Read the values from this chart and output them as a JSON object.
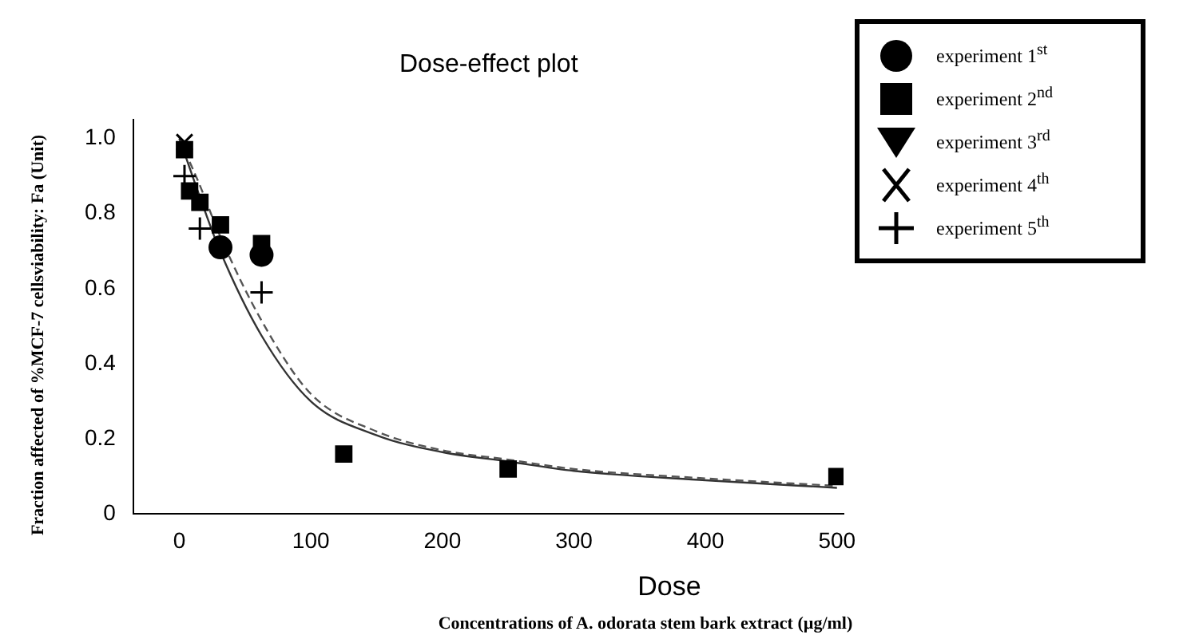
{
  "chart_data": {
    "type": "scatter",
    "title": "Dose-effect plot",
    "xlabel": "Dose",
    "ylabel": "Fraction affected of %MCF-7 cellsviability: Fa (Unit)",
    "annotations": [
      "Concentrations of A. odorata stem bark extract (µg/ml)"
    ],
    "x": [
      3.9,
      7.8,
      15.6,
      31.25,
      62.5,
      125,
      250,
      500
    ],
    "xlim": [
      -35,
      505
    ],
    "xticks": [
      0,
      100,
      200,
      300,
      400,
      500
    ],
    "ylim": [
      0,
      1.05
    ],
    "yticks": [
      0,
      0.2,
      0.4,
      0.6,
      0.8,
      {
        "value": 1,
        "label": "1.0"
      }
    ],
    "grid": false,
    "legend": "top right",
    "series": [
      {
        "name": "experiment 1$^{st}$",
        "color": "#000000",
        "marker": "circle",
        "values": [
          null,
          null,
          null,
          0.71,
          0.69,
          null,
          null,
          null
        ]
      },
      {
        "name": "experiment 2$^{nd}$",
        "color": "#000000",
        "marker": "square",
        "values": [
          0.97,
          0.86,
          0.83,
          0.77,
          0.72,
          0.16,
          0.12,
          0.1
        ]
      },
      {
        "name": "experiment 3$^{rd}$",
        "color": "#000000",
        "marker": "triangle",
        "values": [
          null,
          null,
          null,
          null,
          null,
          null,
          null,
          null
        ]
      },
      {
        "name": "experiment 4$^{th}$",
        "color": "#000000",
        "marker": "cross",
        "values": [
          0.99,
          null,
          null,
          null,
          null,
          null,
          null,
          null
        ]
      },
      {
        "name": "experiment 5$^{th}$",
        "color": "#000000",
        "marker": "plus",
        "values": [
          0.9,
          null,
          0.76,
          null,
          0.59,
          null,
          null,
          null
        ]
      },
      {
        "type": "line",
        "color": "#333333",
        "line_style": "solid",
        "marker": "none",
        "x": [
          0,
          5,
          15,
          31,
          62.5,
          100,
          150,
          200,
          250,
          300,
          400,
          500
        ],
        "values": [
          1.0,
          0.95,
          0.85,
          0.7,
          0.475,
          0.3,
          0.21,
          0.165,
          0.14,
          0.115,
          0.09,
          0.07
        ]
      },
      {
        "type": "line",
        "color": "#555555",
        "line_style": "dashed",
        "marker": "none",
        "x": [
          0,
          5,
          15,
          31,
          62.5,
          100,
          150,
          200,
          250,
          300,
          400,
          500
        ],
        "values": [
          1.0,
          0.96,
          0.88,
          0.74,
          0.515,
          0.32,
          0.22,
          0.17,
          0.145,
          0.12,
          0.095,
          0.075
        ]
      }
    ]
  }
}
